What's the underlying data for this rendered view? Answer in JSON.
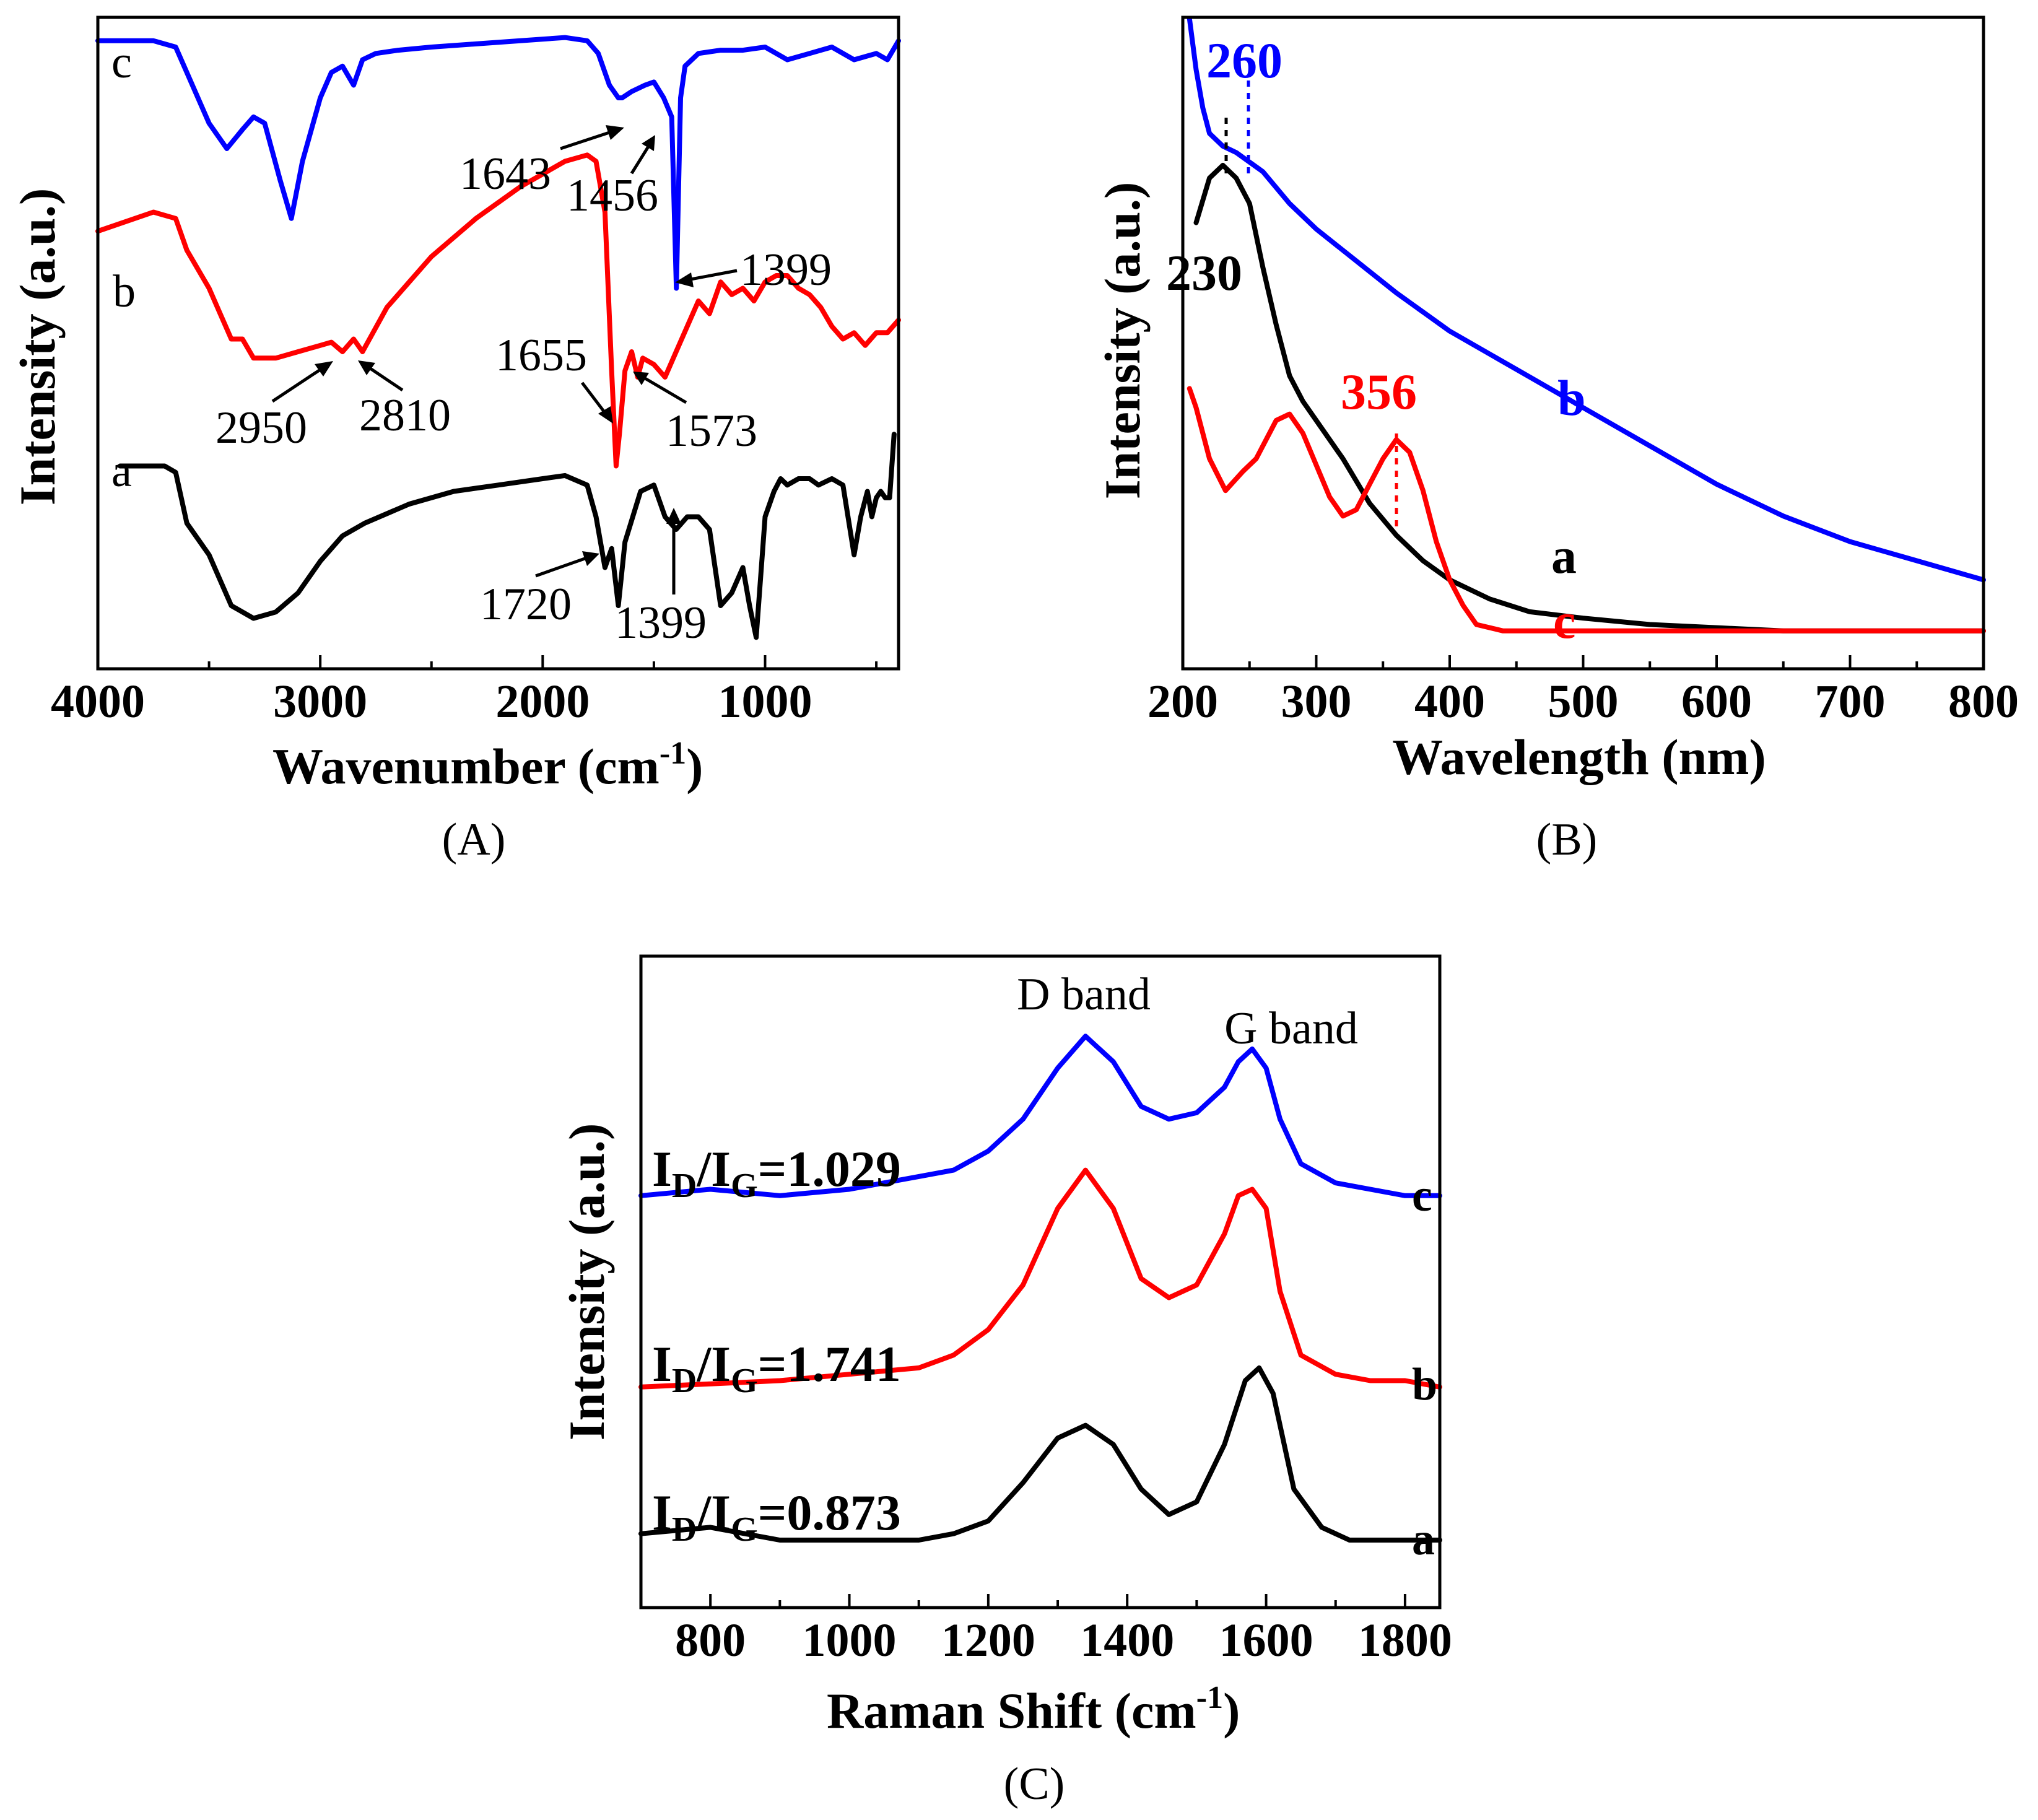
{
  "colors": {
    "black": "#000000",
    "red": "#ff0000",
    "blue": "#0000ff"
  },
  "chart_data": [
    {
      "id": "A",
      "type": "line",
      "caption": "(A)",
      "xlabel": "Wavenumber (cm",
      "xlabel_sup": "-1",
      "xlabel_close": ")",
      "ylabel": "Intensity (a.u.)",
      "xlim": [
        4000,
        400
      ],
      "ylim": [
        0,
        100
      ],
      "x_ticks": [
        "4000",
        "3000",
        "2000",
        "1000"
      ],
      "x_tick_values": [
        4000,
        3000,
        2000,
        1000
      ],
      "series": [
        {
          "name": "a",
          "color": "#000000",
          "x": [
            3900,
            3700,
            3650,
            3600,
            3500,
            3400,
            3300,
            3200,
            3100,
            3000,
            2900,
            2800,
            2600,
            2400,
            2200,
            2000,
            1900,
            1800,
            1760,
            1720,
            1690,
            1660,
            1630,
            1560,
            1500,
            1450,
            1400,
            1350,
            1300,
            1250,
            1200,
            1150,
            1100,
            1070,
            1040,
            1000,
            960,
            930,
            900,
            850,
            800,
            760,
            700,
            650,
            600,
            570,
            540,
            520,
            500,
            480,
            460,
            440,
            420
          ],
          "y": [
            30,
            30,
            29,
            21,
            16,
            8,
            6,
            7,
            10,
            15,
            19,
            21,
            24,
            26,
            27,
            28,
            28.5,
            27,
            22,
            14,
            17,
            8,
            18,
            26,
            27,
            22,
            20,
            22,
            22,
            20,
            8,
            10,
            14,
            8,
            3,
            22,
            26,
            28,
            27,
            28,
            28,
            27,
            28,
            27,
            16,
            22,
            26,
            22,
            25,
            26,
            25,
            25,
            35
          ],
          "label": "a"
        },
        {
          "name": "b",
          "color": "#ff0000",
          "x": [
            4000,
            3750,
            3650,
            3600,
            3500,
            3450,
            3400,
            3350,
            3300,
            3200,
            3100,
            3000,
            2950,
            2900,
            2850,
            2810,
            2700,
            2500,
            2300,
            2100,
            1900,
            1800,
            1760,
            1720,
            1690,
            1670,
            1655,
            1630,
            1600,
            1573,
            1550,
            1500,
            1450,
            1400,
            1350,
            1300,
            1250,
            1200,
            1150,
            1100,
            1050,
            1000,
            950,
            900,
            850,
            800,
            750,
            700,
            650,
            600,
            550,
            500,
            450,
            400
          ],
          "y": [
            67,
            70,
            69,
            64,
            58,
            54,
            50,
            50,
            47,
            47,
            48,
            49,
            49.5,
            48,
            50,
            48,
            55,
            63,
            69,
            74,
            78,
            79,
            78,
            70,
            45,
            30,
            35,
            45,
            48,
            44,
            47,
            46,
            44,
            48,
            52,
            56,
            54,
            59,
            57,
            58,
            56,
            59,
            60,
            60,
            58,
            57,
            55,
            52,
            50,
            51,
            49,
            51,
            51,
            53
          ],
          "label": "b"
        },
        {
          "name": "c",
          "color": "#0000ff",
          "x": [
            4000,
            3750,
            3650,
            3600,
            3500,
            3420,
            3350,
            3300,
            3250,
            3180,
            3130,
            3080,
            3000,
            2950,
            2900,
            2850,
            2810,
            2750,
            2650,
            2500,
            2300,
            2100,
            1900,
            1800,
            1750,
            1700,
            1660,
            1643,
            1600,
            1540,
            1500,
            1456,
            1420,
            1399,
            1380,
            1360,
            1300,
            1200,
            1100,
            1000,
            900,
            800,
            700,
            600,
            500,
            450,
            400
          ],
          "y": [
            97,
            97,
            96,
            92,
            84,
            80,
            83,
            85,
            84,
            75,
            69,
            78,
            88,
            92,
            93,
            90,
            94,
            95,
            95.5,
            96,
            96.5,
            97,
            97.5,
            97,
            95,
            90,
            88,
            88,
            89,
            90,
            90.5,
            88,
            85,
            58,
            88,
            93,
            95,
            95.5,
            95.5,
            96,
            94,
            95,
            96,
            94,
            95,
            94,
            97
          ],
          "label": "c"
        }
      ],
      "annotations": [
        "1643",
        "1456",
        "1399",
        "2950",
        "2810",
        "1655",
        "1573",
        "1720",
        "1399"
      ]
    },
    {
      "id": "B",
      "type": "line",
      "caption": "(B)",
      "xlabel": "Wavelength (nm)",
      "ylabel": "Intensity (a.u.)",
      "xlim": [
        200,
        800
      ],
      "ylim": [
        0,
        100
      ],
      "x_ticks": [
        "200",
        "300",
        "400",
        "500",
        "600",
        "700",
        "800"
      ],
      "x_tick_values": [
        200,
        300,
        400,
        500,
        600,
        700,
        800
      ],
      "series": [
        {
          "name": "a",
          "color": "#000000",
          "x": [
            210,
            220,
            230,
            240,
            250,
            260,
            270,
            280,
            290,
            300,
            320,
            340,
            360,
            380,
            400,
            430,
            460,
            500,
            550,
            600,
            650,
            700,
            800
          ],
          "y": [
            68,
            75,
            77,
            75,
            71,
            61,
            52,
            44,
            40,
            37,
            31,
            24,
            19,
            15,
            12,
            9,
            7,
            6,
            5,
            4.5,
            4,
            4,
            4
          ],
          "label": "a"
        },
        {
          "name": "b",
          "color": "#0000ff",
          "x": [
            205,
            210,
            215,
            220,
            230,
            240,
            260,
            280,
            300,
            330,
            360,
            400,
            450,
            500,
            550,
            600,
            650,
            700,
            750,
            800
          ],
          "y": [
            100,
            92,
            86,
            82,
            80,
            79,
            76,
            71,
            67,
            62,
            57,
            51,
            45,
            39,
            33,
            27,
            22,
            18,
            15,
            12
          ],
          "label": "b"
        },
        {
          "name": "c",
          "color": "#ff0000",
          "x": [
            205,
            210,
            220,
            232,
            245,
            255,
            270,
            280,
            290,
            300,
            310,
            320,
            330,
            340,
            350,
            360,
            370,
            380,
            390,
            400,
            410,
            420,
            440,
            460,
            500,
            600,
            700,
            800
          ],
          "y": [
            42,
            39,
            31,
            26,
            29,
            31,
            37,
            38,
            35,
            30,
            25,
            22,
            23,
            27,
            31,
            34,
            32,
            26,
            18,
            12,
            8,
            5,
            4,
            4,
            4,
            4,
            4,
            4
          ],
          "label": "c"
        }
      ],
      "annotations": [
        "260",
        "230",
        "356",
        "a",
        "b",
        "c"
      ]
    },
    {
      "id": "C",
      "type": "line",
      "caption": "(C)",
      "xlabel": "Raman Shift (cm",
      "xlabel_sup": "-1",
      "xlabel_close": ")",
      "ylabel": "Intensity (a.u.)",
      "xlim": [
        700,
        1850
      ],
      "ylim": [
        0,
        100
      ],
      "x_ticks": [
        "800",
        "1000",
        "1200",
        "1400",
        "1600",
        "1800"
      ],
      "x_tick_values": [
        800,
        1000,
        1200,
        1400,
        1600,
        1800
      ],
      "band_labels": [
        "D band",
        "G band"
      ],
      "series": [
        {
          "name": "a",
          "color": "#000000",
          "ratio": "=0.873",
          "x": [
            700,
            800,
            900,
            1000,
            1100,
            1150,
            1200,
            1250,
            1300,
            1340,
            1380,
            1420,
            1460,
            1500,
            1540,
            1570,
            1590,
            1610,
            1640,
            1680,
            1720,
            1800,
            1850
          ],
          "y": [
            11,
            12,
            10,
            10,
            10,
            11,
            13,
            19,
            26,
            28,
            25,
            18,
            14,
            16,
            25,
            35,
            37,
            33,
            18,
            12,
            10,
            10,
            10
          ],
          "label": "a"
        },
        {
          "name": "b",
          "color": "#ff0000",
          "ratio": "=1.741",
          "x": [
            700,
            800,
            900,
            1000,
            1100,
            1150,
            1200,
            1250,
            1300,
            1340,
            1380,
            1420,
            1460,
            1500,
            1540,
            1560,
            1580,
            1600,
            1620,
            1650,
            1700,
            1750,
            1800,
            1850
          ],
          "y": [
            34,
            34.5,
            35,
            36,
            37,
            39,
            43,
            50,
            62,
            68,
            62,
            51,
            48,
            50,
            58,
            64,
            65,
            62,
            49,
            39,
            36,
            35,
            35,
            34
          ],
          "label": "b"
        },
        {
          "name": "c",
          "color": "#0000ff",
          "ratio": "=1.029",
          "x": [
            700,
            800,
            900,
            1000,
            1100,
            1150,
            1200,
            1250,
            1300,
            1340,
            1380,
            1420,
            1460,
            1500,
            1540,
            1560,
            1580,
            1600,
            1620,
            1650,
            1700,
            1750,
            1800,
            1850
          ],
          "y": [
            64,
            65,
            64,
            65,
            67,
            68,
            71,
            76,
            84,
            89,
            85,
            78,
            76,
            77,
            81,
            85,
            87,
            84,
            76,
            69,
            66,
            65,
            64,
            64
          ],
          "label": "c"
        }
      ]
    }
  ]
}
